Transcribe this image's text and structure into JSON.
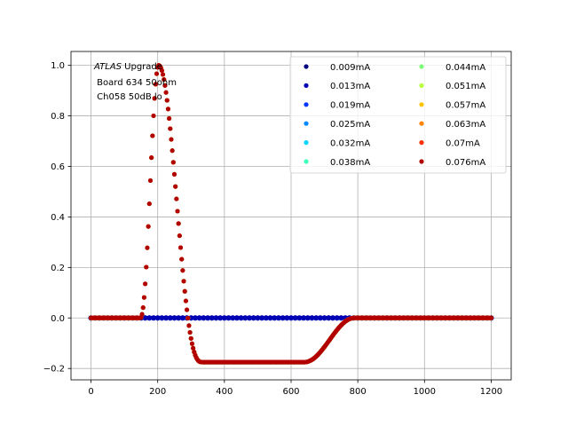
{
  "chart_data": {
    "type": "scatter",
    "title": "",
    "xlabel": "",
    "ylabel": "",
    "xlim": [
      -60,
      1260
    ],
    "ylim": [
      -0.245,
      1.055
    ],
    "grid": true,
    "xticks": [
      0,
      200,
      400,
      600,
      800,
      1000,
      1200
    ],
    "xtick_labels": [
      "0",
      "200",
      "400",
      "600",
      "800",
      "1000",
      "1200"
    ],
    "yticks": [
      -0.2,
      0.0,
      0.2,
      0.4,
      0.6,
      0.8,
      1.0
    ],
    "ytick_labels": [
      "−0.2",
      "0.0",
      "0.2",
      "0.4",
      "0.6",
      "0.8",
      "1.0"
    ],
    "annotation": {
      "line1_italic": "ATLAS",
      "line1_rest": " Upgrade",
      "line2": " Board 634 50ohm",
      "line3": " Ch058 50dB lo"
    },
    "legend": {
      "placement": "upper right",
      "columns": 2
    },
    "pulse": {
      "x_start": 0,
      "x_end": 1200,
      "x_step": 3.125,
      "rise_start": 148,
      "peak_x": 203,
      "peak_y": 1.0,
      "undershoot_y": -0.175,
      "undershoot_from": 340,
      "undershoot_to": 640,
      "recover_end": 790
    },
    "series": [
      {
        "name": "0.009mA",
        "color": "#00007f",
        "shape": "flat",
        "marker_size": 3.0
      },
      {
        "name": "0.013mA",
        "color": "#0000b5",
        "shape": "flat",
        "marker_size": 3.0
      },
      {
        "name": "0.019mA",
        "color": "#0034ff",
        "shape": "pulse",
        "marker_size": 2.5
      },
      {
        "name": "0.025mA",
        "color": "#0088ff",
        "shape": "pulse",
        "marker_size": 2.5
      },
      {
        "name": "0.032mA",
        "color": "#00d4ff",
        "shape": "pulse",
        "marker_size": 2.5
      },
      {
        "name": "0.038mA",
        "color": "#3dffb9",
        "shape": "pulse",
        "marker_size": 2.5
      },
      {
        "name": "0.044mA",
        "color": "#7dff7a",
        "shape": "pulse",
        "marker_size": 2.5
      },
      {
        "name": "0.051mA",
        "color": "#b9ff3d",
        "shape": "pulse",
        "marker_size": 2.5
      },
      {
        "name": "0.057mA",
        "color": "#ffc400",
        "shape": "pulse",
        "marker_size": 2.5
      },
      {
        "name": "0.063mA",
        "color": "#ff8200",
        "shape": "pulse",
        "marker_size": 2.5
      },
      {
        "name": "0.07mA",
        "color": "#ff3000",
        "shape": "pulse",
        "marker_size": 2.5
      },
      {
        "name": "0.076mA",
        "color": "#b20000",
        "shape": "pulse",
        "marker_size": 2.5
      }
    ]
  }
}
